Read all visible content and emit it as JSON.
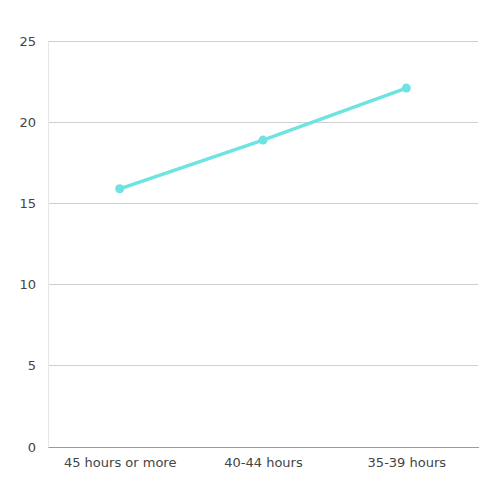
{
  "chart_data": {
    "type": "line",
    "categories": [
      "45 hours or more",
      "40-44 hours",
      "35-39 hours"
    ],
    "values": [
      15.9,
      18.9,
      22.1
    ],
    "color": "#6fe3e1",
    "marker": "circle",
    "ylim": [
      0,
      25
    ],
    "yticks": [
      0,
      5,
      10,
      15,
      20,
      25
    ],
    "grid": true
  }
}
